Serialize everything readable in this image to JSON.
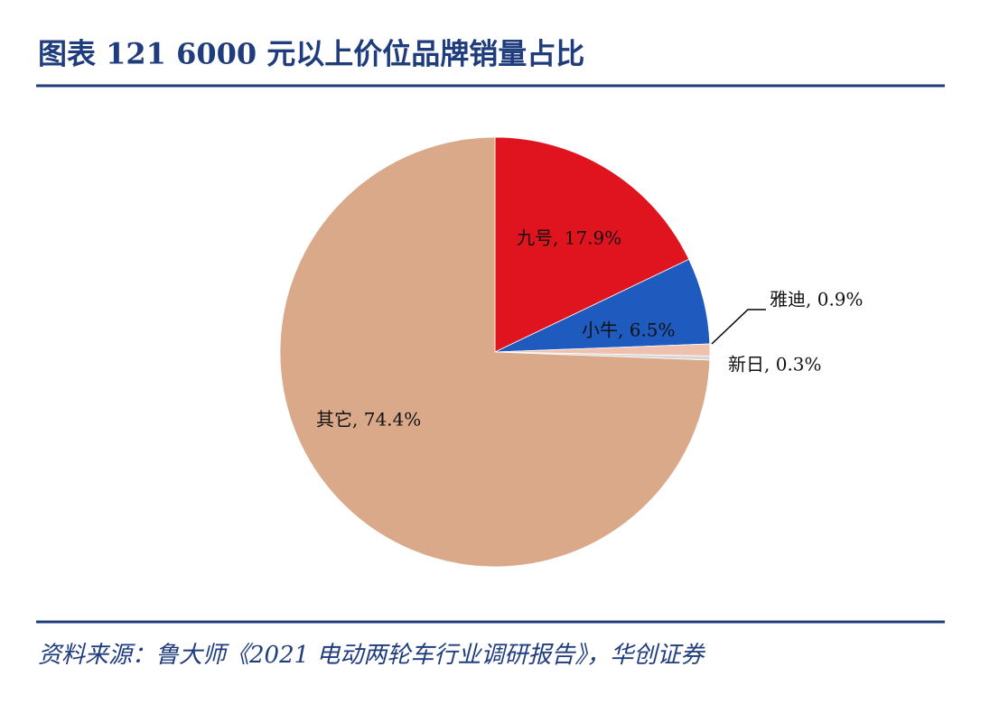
{
  "chart_data": {
    "type": "pie",
    "title": "图表 121  6000 元以上价位品牌销量占比",
    "source": "资料来源：鲁大师《2021 电动两轮车行业调研报告》，华创证券",
    "categories": [
      "九号",
      "小牛",
      "雅迪",
      "新日",
      "其它"
    ],
    "values": [
      17.9,
      6.5,
      0.9,
      0.3,
      74.4
    ],
    "value_labels": [
      "九号, 17.9%",
      "小牛, 6.5%",
      "雅迪, 0.9%",
      "新日, 0.3%",
      "其它, 74.4%"
    ],
    "colors": [
      "#e0141e",
      "#1f5bbf",
      "#f0c0ae",
      "#d6d6d6",
      "#d9a98a"
    ]
  }
}
